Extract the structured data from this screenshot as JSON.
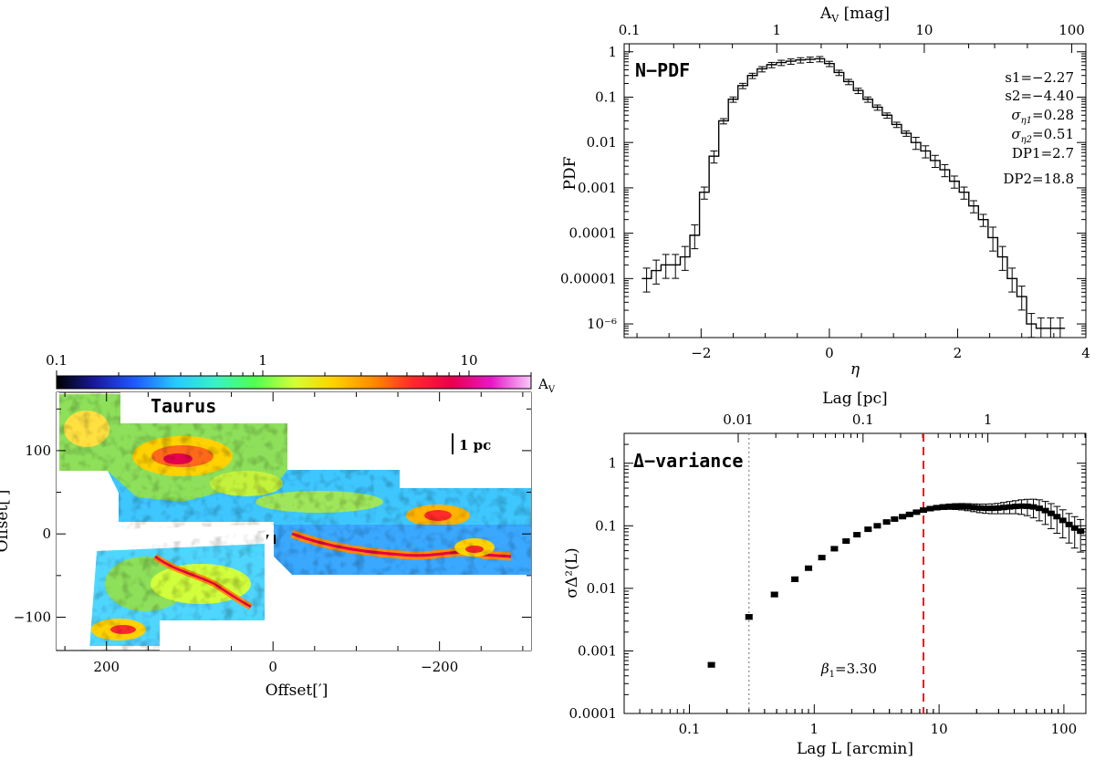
{
  "chart_data": [
    {
      "type": "image",
      "panel": "av-map",
      "title": "Taurus",
      "colorbar": {
        "label": "A",
        "label_sub": "V",
        "ticks": [
          "0.1",
          "1",
          "10"
        ],
        "colors": [
          "#000000",
          "#1a1aa0",
          "#1f5cff",
          "#28c8ff",
          "#3cf0c8",
          "#50ff50",
          "#d2ff3c",
          "#ffd200",
          "#ff8c00",
          "#ff2a2a",
          "#e6004d",
          "#e619c8",
          "#fac8fa"
        ]
      },
      "xlabel": "Offset[′]",
      "ylabel": "Offset[′]",
      "xticks": [
        "200",
        "0",
        "−200"
      ],
      "yticks": [
        "100",
        "0",
        "−100"
      ],
      "scalebar_label": "1 pc"
    },
    {
      "type": "line",
      "panel": "n-pdf",
      "title": "N−PDF",
      "xlabel": "η",
      "ylabel": "PDF",
      "top_axis_label": "A",
      "top_axis_label_sub": "V",
      "top_axis_unit": " [mag]",
      "xlim": [
        -3.2,
        4
      ],
      "ylim": [
        5e-07,
        1.5
      ],
      "xticks": [
        "−2",
        "0",
        "2",
        "4"
      ],
      "yticks": [
        "1",
        "0.1",
        "0.01",
        "0.001",
        "0.0001",
        "0.00001",
        "10⁻⁶"
      ],
      "top_ticks": [
        "0.1",
        "1",
        "10",
        "100"
      ],
      "annotations": {
        "s1": "s1=−2.27",
        "s2": "s2=−4.40",
        "sig1": "σ",
        "sig1_sub": "η1",
        "sig1_val": "=0.28",
        "sig2": "σ",
        "sig2_sub": "η2",
        "sig2_val": "=0.51",
        "dp1": "DP1=2.7",
        "dp2": "DP2=18.8"
      },
      "series": [
        {
          "name": "N-PDF",
          "x": [
            -2.85,
            -2.7,
            -2.55,
            -2.4,
            -2.25,
            -2.1,
            -1.95,
            -1.8,
            -1.65,
            -1.5,
            -1.35,
            -1.2,
            -1.05,
            -0.9,
            -0.75,
            -0.6,
            -0.45,
            -0.3,
            -0.15,
            0.0,
            0.15,
            0.3,
            0.45,
            0.6,
            0.75,
            0.9,
            1.05,
            1.2,
            1.35,
            1.5,
            1.65,
            1.8,
            1.95,
            2.1,
            2.25,
            2.4,
            2.55,
            2.7,
            2.85,
            3.0,
            3.15,
            3.3,
            3.45,
            3.6
          ],
          "values": [
            1e-05,
            1.5e-05,
            2e-05,
            2e-05,
            3e-05,
            9e-05,
            0.0008,
            0.005,
            0.03,
            0.09,
            0.18,
            0.3,
            0.42,
            0.52,
            0.58,
            0.62,
            0.66,
            0.68,
            0.7,
            0.55,
            0.35,
            0.22,
            0.14,
            0.09,
            0.06,
            0.04,
            0.025,
            0.016,
            0.01,
            0.0065,
            0.004,
            0.0025,
            0.0014,
            0.0008,
            0.0004,
            0.0002,
            8e-05,
            3e-05,
            1e-05,
            4e-06,
            1e-06,
            8e-07,
            8e-07,
            8e-07
          ]
        }
      ]
    },
    {
      "type": "scatter",
      "panel": "delta-variance",
      "title": "Δ−variance",
      "xlabel": "Lag L [arcmin]",
      "ylabel": "σΔ²(L)",
      "top_axis_label": "Lag [pc]",
      "xlim": [
        0.03,
        150
      ],
      "ylim": [
        0.0001,
        3
      ],
      "xticks": [
        "0.1",
        "1",
        "10",
        "100"
      ],
      "yticks": [
        "1",
        "0.1",
        "0.01",
        "0.001",
        "0.0001"
      ],
      "top_ticks": [
        "0.01",
        "0.1",
        "1"
      ],
      "annotation": "β",
      "annotation_sub": "1",
      "annotation_val": "=3.30",
      "gray_line_x": 0.3,
      "red_line_x": 7.5,
      "series": [
        {
          "name": "delta-variance",
          "x": [
            0.15,
            0.3,
            0.48,
            0.7,
            0.9,
            1.15,
            1.45,
            1.8,
            2.2,
            2.7,
            3.2,
            3.8,
            4.4,
            5.1,
            5.8,
            6.6,
            7.5,
            8.5,
            9.6,
            10.8,
            12.1,
            13.6,
            15.2,
            17.0,
            19.0,
            21.2,
            23.7,
            26.5,
            29.6,
            33.0,
            36.8,
            41.0,
            45.7,
            51.0,
            57.0,
            63.5,
            71.0,
            79.0,
            88.0,
            98.0,
            110.0,
            122.0,
            136.0
          ],
          "values": [
            0.0006,
            0.0035,
            0.008,
            0.014,
            0.021,
            0.031,
            0.043,
            0.057,
            0.072,
            0.088,
            0.1,
            0.115,
            0.128,
            0.14,
            0.152,
            0.165,
            0.178,
            0.188,
            0.195,
            0.2,
            0.203,
            0.204,
            0.203,
            0.2,
            0.196,
            0.192,
            0.19,
            0.19,
            0.192,
            0.196,
            0.2,
            0.204,
            0.206,
            0.205,
            0.2,
            0.19,
            0.175,
            0.158,
            0.14,
            0.122,
            0.105,
            0.092,
            0.082
          ],
          "errors": [
            5e-05,
            0.0003,
            0.0007,
            0.0012,
            0.0015,
            0.002,
            0.003,
            0.003,
            0.004,
            0.004,
            0.005,
            0.006,
            0.007,
            0.008,
            0.009,
            0.01,
            0.012,
            0.014,
            0.016,
            0.018,
            0.02,
            0.022,
            0.024,
            0.026,
            0.028,
            0.03,
            0.032,
            0.034,
            0.036,
            0.04,
            0.044,
            0.048,
            0.054,
            0.06,
            0.066,
            0.07,
            0.07,
            0.068,
            0.064,
            0.058,
            0.052,
            0.048,
            0.044
          ]
        }
      ]
    }
  ]
}
